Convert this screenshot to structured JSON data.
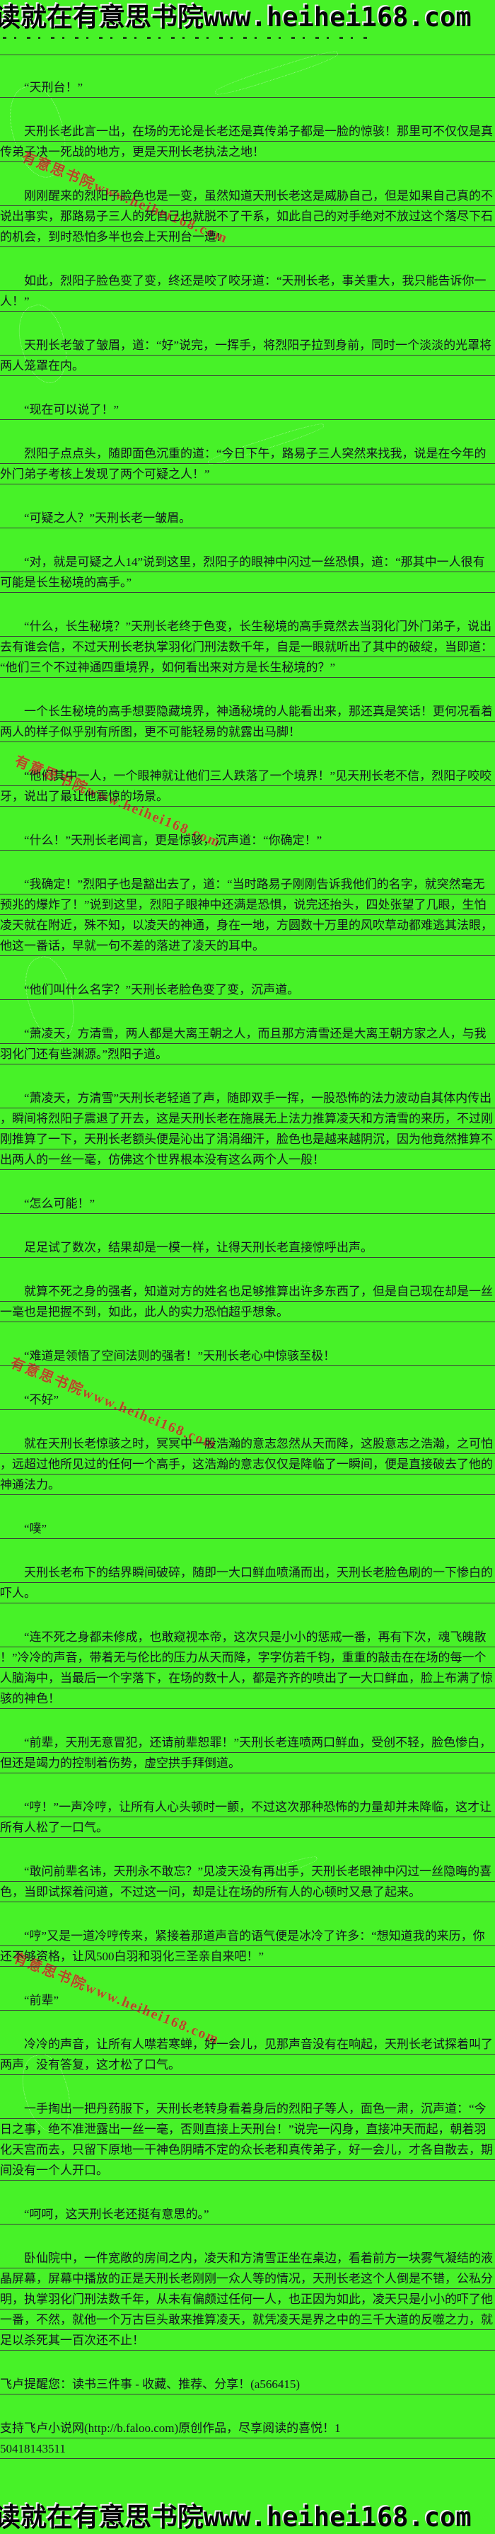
{
  "site": {
    "banner_text": "读就在有意思书院www.heihei168.com",
    "watermark_text": "有意思书院www.heihei168.com",
    "colors": {
      "background_green": "#47F228",
      "banner_text": "#050508",
      "banner_emboss": "#F2F2F2",
      "body_text": "#141422",
      "rule_line": "#3C3C3C",
      "watermark_red": "#CC2222"
    }
  },
  "novel": {
    "paragraphs": [
      "“天刑台！”",
      "天刑长老此言一出，在场的无论是长老还是真传弟子都是一脸的惊骇！那里可不仅仅是真传弟子决一死战的地方，更是天刑长老执法之地！",
      "刚刚醒来的烈阳子脸色也是一变，虽然知道天刑长老这是威胁自己，但是如果自己真的不说出事实，那路易子三人的死自己也就脱不了干系，如此自己的对手绝对不放过这个落尽下石的机会，到时恐怕多半也会上天刑台一遭!",
      "如此，烈阳子脸色变了变，终还是咬了咬牙道：“天刑长老，事关重大，我只能告诉你一人！”",
      "天刑长老皱了皱眉，道：“好”说完，一挥手，将烈阳子拉到身前，同时一个淡淡的光罩将两人笼罩在内。",
      "“现在可以说了！”",
      "烈阳子点点头，随即面色沉重的道：“今日下午，路易子三人突然来找我，说是在今年的外门弟子考核上发现了两个可疑之人！”",
      "“可疑之人？”天刑长老一皱眉。",
      "“对，就是可疑之人14”说到这里，烈阳子的眼神中闪过一丝恐惧，道：“那其中一人很有可能是长生秘境的高手。”",
      "“什么，长生秘境？”天刑长老终于色变，长生秘境的高手竟然去当羽化门外门弟子，说出去有谁会信，不过天刑长老执掌羽化门刑法数千年，自是一眼就听出了其中的破绽，当即道：“他们三个不过神通四重境界，如何看出来对方是长生秘境的？”",
      "一个长生秘境的高手想要隐藏境界，神通秘境的人能看出来，那还真是笑话！更何况看着两人的样子似乎别有所图，更不可能轻易的就露出马脚！",
      "“他们其中一人，一个眼神就让他们三人跌落了一个境界！”见天刑长老不信，烈阳子咬咬牙，说出了最让他震惊的场景。",
      "“什么！”天刑长老闻言，更是惊骇，沉声道：“你确定！”",
      "“我确定！”烈阳子也是豁出去了，道：“当时路易子刚刚告诉我他们的名字，就突然毫无预兆的爆炸了！”说到这里，烈阳子眼神中还满是恐惧，说完还抬头，四处张望了几眼，生怕凌天就在附近，殊不知，以凌天的神通，身在一地，方圆数十万里的风吹草动都难逃其法眼，他这一番话，早就一句不差的落进了凌天的耳中。",
      "“他们叫什么名字？”天刑长老脸色变了变，沉声道。",
      "“萧凌天，方清雪，两人都是大离王朝之人，而且那方清雪还是大离王朝方家之人，与我羽化门还有些渊源。”烈阳子道。",
      "“萧凌天，方清雪”天刑长老轻道了声，随即双手一挥，一股恐怖的法力波动自其体内传出，瞬间将烈阳子震退了开去，这是天刑长老在施展无上法力推算凌天和方清雪的来历，不过刚刚推算了一下，天刑长老额头便是沁出了涓涓细汗，脸色也是越来越阴沉，因为他竟然推算不出两人的一丝一毫，仿佛这个世界根本没有这么两个人一般！",
      "“怎么可能！”",
      "足足试了数次，结果却是一模一样，让得天刑长老直接惊呼出声。",
      "就算不死之身的强者，知道对方的姓名也足够推算出许多东西了，但是自己现在却是一丝一毫也是把握不到，如此，此人的实力恐怕超乎想象。",
      "“难道是领悟了空间法则的强者！”天刑长老心中惊骇至极！",
      "“不好”",
      "就在天刑长老惊骇之时，冥冥中一股浩瀚的意志忽然从天而降，这股意志之浩瀚，之可怕，远超过他所见过的任何一个高手，这浩瀚的意志仅仅是降临了一瞬间，便是直接破去了他的神通法力。",
      "“噗”",
      "天刑长老布下的结界瞬间破碎，随即一大口鲜血喷涌而出，天刑长老脸色刷的一下惨白的吓人。",
      "“连不死之身都未修成，也敢窥视本帝，这次只是小小的惩戒一番，再有下次，魂飞魄散！”冷冷的声音，带着无与伦比的压力从天而降，字字仿若千钧，重重的敲击在在场的每一个人脑海中，当最后一个字落下，在场的数十人，都是齐齐的喷出了一大口鲜血，脸上布满了惊骇的神色！",
      "“前辈，天刑无意冒犯，还请前辈恕罪！”天刑长老连喷两口鲜血，受创不轻，脸色惨白，但还是竭力的控制着伤势，虚空拱手拜倒道。",
      "“哼！”一声冷哼，让所有人心头顿时一颤，不过这次那种恐怖的力量却并未降临，这才让所有人松了一口气。",
      "“敢问前辈名讳，天刑永不敢忘？”见凌天没有再出手，天刑长老眼神中闪过一丝隐晦的喜色，当即试探着问道，不过这一问，却是让在场的所有人的心顿时又悬了起来。",
      "“哼”又是一道冷哼传来，紧接着那道声音的语气便是冰冷了许多：“想知道我的来历，你还不够资格，让风500白羽和羽化三圣亲自来吧！”",
      "“前辈”",
      "冷冷的声音，让所有人噤若寒蝉，好一会儿，见那声音没有在响起，天刑长老试探着叫了两声，没有答复，这才松了口气。",
      "一手掏出一把丹药服下，天刑长老转身看着身后的烈阳子等人，面色一肃，沉声道：“今日之事，绝不准泄露出一丝一毫，否则直接上天刑台！”说完一闪身，直接冲天而起，朝着羽化天宫而去，只留下原地一干神色阴晴不定的众长老和真传弟子，好一会儿，才各自散去，期间没有一个人开口。",
      "“呵呵，这天刑长老还挺有意思的。”",
      "卧仙院中，一件宽敞的房间之内，凌天和方清雪正坐在桌边，看着前方一块雾气凝结的液晶屏幕，屏幕中播放的正是天刑长老刚刚一众人等的情况，天刑长老这个人倒是不错，公私分明，执掌羽化门刑法数千年，从未有偏颇过任何一人，也正因为如此，凌天只是小小的吓了他一番，不然，就他一个万古巨头敢来推算凌天，就凭凌天是界之中的三千大道的反噬之力，就足以杀死其一百次还不止！"
    ],
    "footer_paragraphs": [
      "飞卢提醒您：读书三件事 - 收藏、推荐、分享！(a566415)",
      "支持飞卢小说网(http://b.faloo.com)原创作品，尽享阅读的喜悦！1\n50418143511"
    ]
  }
}
